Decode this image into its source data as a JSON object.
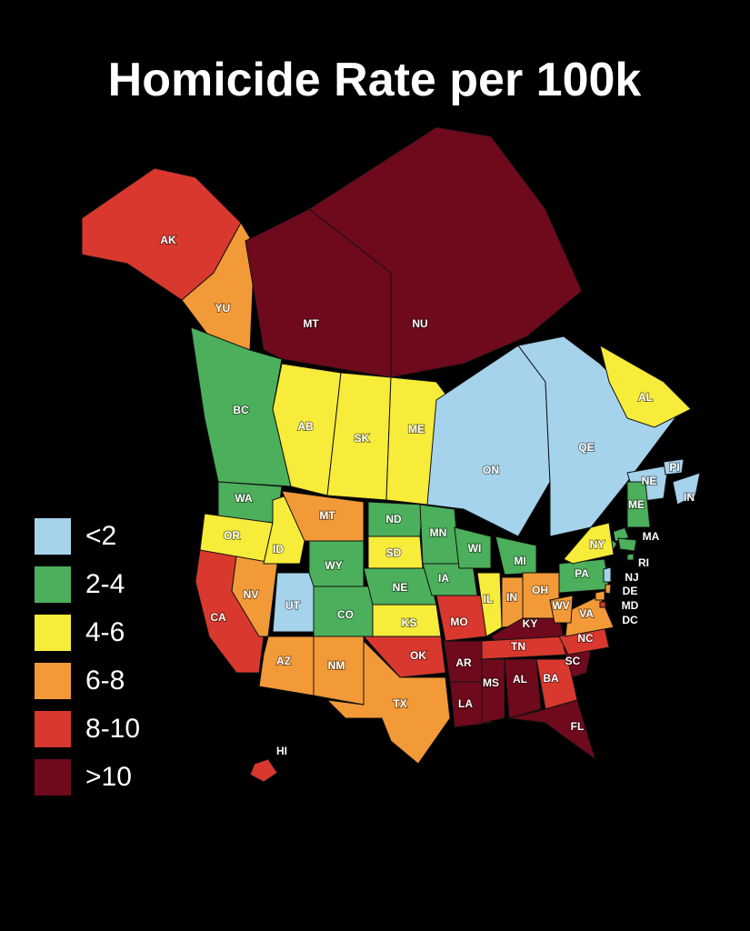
{
  "title": "Homicide Rate per 100k",
  "legend": [
    {
      "label": "<2",
      "color": "#a6d3ec"
    },
    {
      "label": "2-4",
      "color": "#4caf5b"
    },
    {
      "label": "4-6",
      "color": "#f7ec3a"
    },
    {
      "label": "6-8",
      "color": "#f39a38"
    },
    {
      "label": "8-10",
      "color": "#d9382e"
    },
    {
      "label": ">10",
      "color": "#6e0a1c"
    }
  ],
  "regions": [
    {
      "label": "AK",
      "color": "#d9382e"
    },
    {
      "label": "YU",
      "color": "#f39a38"
    },
    {
      "label": "MT",
      "color": "#6e0a1c"
    },
    {
      "label": "NU",
      "color": "#6e0a1c"
    },
    {
      "label": "BC",
      "color": "#4caf5b"
    },
    {
      "label": "AB",
      "color": "#f7ec3a"
    },
    {
      "label": "SK",
      "color": "#f7ec3a"
    },
    {
      "label": "ME",
      "color": "#f7ec3a"
    },
    {
      "label": "ON",
      "color": "#a6d3ec"
    },
    {
      "label": "QE",
      "color": "#a6d3ec"
    },
    {
      "label": "AL",
      "color": "#f7ec3a"
    },
    {
      "label": "NE",
      "color": "#a6d3ec"
    },
    {
      "label": "PI",
      "color": "#a6d3ec"
    },
    {
      "label": "IN",
      "color": "#a6d3ec"
    },
    {
      "label": "WA",
      "color": "#4caf5b"
    },
    {
      "label": "OR",
      "color": "#f7ec3a"
    },
    {
      "label": "CA",
      "color": "#d9382e"
    },
    {
      "label": "NV",
      "color": "#f39a38"
    },
    {
      "label": "ID",
      "color": "#f7ec3a"
    },
    {
      "label": "MT",
      "color": "#f39a38"
    },
    {
      "label": "WY",
      "color": "#4caf5b"
    },
    {
      "label": "UT",
      "color": "#a6d3ec"
    },
    {
      "label": "CO",
      "color": "#4caf5b"
    },
    {
      "label": "AZ",
      "color": "#f39a38"
    },
    {
      "label": "NM",
      "color": "#f39a38"
    },
    {
      "label": "ND",
      "color": "#4caf5b"
    },
    {
      "label": "SD",
      "color": "#f7ec3a"
    },
    {
      "label": "NE",
      "color": "#4caf5b"
    },
    {
      "label": "KS",
      "color": "#f7ec3a"
    },
    {
      "label": "OK",
      "color": "#d9382e"
    },
    {
      "label": "TX",
      "color": "#f39a38"
    },
    {
      "label": "MN",
      "color": "#4caf5b"
    },
    {
      "label": "IA",
      "color": "#4caf5b"
    },
    {
      "label": "MO",
      "color": "#d9382e"
    },
    {
      "label": "AR",
      "color": "#6e0a1c"
    },
    {
      "label": "LA",
      "color": "#6e0a1c"
    },
    {
      "label": "WI",
      "color": "#4caf5b"
    },
    {
      "label": "IL",
      "color": "#f7ec3a"
    },
    {
      "label": "MI",
      "color": "#4caf5b"
    },
    {
      "label": "IN",
      "color": "#f39a38"
    },
    {
      "label": "OH",
      "color": "#f39a38"
    },
    {
      "label": "KY",
      "color": "#6e0a1c"
    },
    {
      "label": "TN",
      "color": "#d9382e"
    },
    {
      "label": "MS",
      "color": "#6e0a1c"
    },
    {
      "label": "AL",
      "color": "#6e0a1c"
    },
    {
      "label": "BA",
      "color": "#d9382e"
    },
    {
      "label": "FL",
      "color": "#6e0a1c"
    },
    {
      "label": "SC",
      "color": "#6e0a1c"
    },
    {
      "label": "NC",
      "color": "#d9382e"
    },
    {
      "label": "VA",
      "color": "#f39a38"
    },
    {
      "label": "WV",
      "color": "#f39a38"
    },
    {
      "label": "PA",
      "color": "#4caf5b"
    },
    {
      "label": "NY",
      "color": "#f7ec3a"
    },
    {
      "label": "ME",
      "color": "#4caf5b"
    },
    {
      "label": "MA",
      "color": "#4caf5b"
    },
    {
      "label": "RI",
      "color": "#4caf5b"
    },
    {
      "label": "NJ",
      "color": "#a6d3ec"
    },
    {
      "label": "DE",
      "color": "#f39a38"
    },
    {
      "label": "MD",
      "color": "#f39a38"
    },
    {
      "label": "DC",
      "color": "#d9382e"
    },
    {
      "label": "HI",
      "color": "#d9382e"
    }
  ]
}
